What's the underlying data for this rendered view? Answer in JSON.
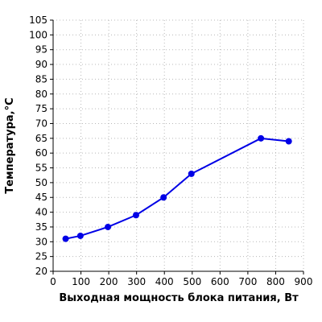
{
  "chart_data": {
    "type": "line",
    "title": "",
    "xlabel": "Выходная мощность блока питания, Вт",
    "ylabel": "Температура,°C",
    "xlim": [
      0,
      900
    ],
    "ylim": [
      20,
      105
    ],
    "x_ticks": [
      "0",
      "100",
      "200",
      "300",
      "400",
      "500",
      "600",
      "700",
      "800",
      "900"
    ],
    "y_ticks": [
      "20",
      "25",
      "30",
      "35",
      "40",
      "45",
      "50",
      "55",
      "60",
      "65",
      "70",
      "75",
      "80",
      "85",
      "90",
      "95",
      "100",
      "105"
    ],
    "grid": true,
    "series": [
      {
        "color": "#0000e6",
        "x": [
          45,
          98,
          197,
          298,
          397,
          497,
          747,
          847
        ],
        "y": [
          31,
          32,
          35,
          39,
          45,
          53,
          65,
          64
        ]
      }
    ]
  }
}
